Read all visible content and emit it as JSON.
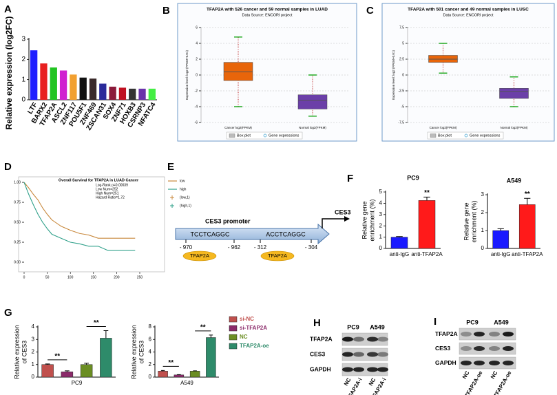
{
  "panel_labels": [
    "A",
    "B",
    "C",
    "D",
    "E",
    "F",
    "G",
    "H",
    "I"
  ],
  "chart_data": [
    {
      "type": "bar",
      "ylabel": "Relative expression (log2FC)",
      "categories": [
        "LTF",
        "BARX2",
        "TFAP2A",
        "ASCL2",
        "ZNF117",
        "POU5F1",
        "ZNF469",
        "ZSCAN31",
        "SOX4",
        "ZNF71",
        "HOXB3",
        "CSRNP3",
        "NFATC4"
      ],
      "values": [
        2.45,
        1.8,
        1.6,
        1.45,
        1.25,
        1.1,
        1.05,
        0.8,
        0.65,
        0.6,
        0.55,
        0.55,
        0.55
      ],
      "colors": [
        "#1f1fff",
        "#e82020",
        "#22c422",
        "#d020d0",
        "#f2a030",
        "#111111",
        "#3a2a2a",
        "#2a2a9a",
        "#8b1a3a",
        "#c01020",
        "#333333",
        "#6a33aa",
        "#44ee44"
      ],
      "ylim": [
        0,
        3
      ],
      "yticks": [
        0,
        1,
        2,
        3
      ]
    },
    {
      "type": "box",
      "title": "TFAP2A with 526 cancer and 59 normal samples in LUAD",
      "subtitle": "Data Source: ENCORI project",
      "ylabel": "Expression level: log2 (FPKM+0.01)",
      "categories": [
        "Cancer log2(FPKM)",
        "Normal log2(FPKM)"
      ],
      "boxes": [
        {
          "min": -4,
          "q1": -0.7,
          "median": 0.4,
          "q3": 1.6,
          "max": 4.8
        },
        {
          "min": -5.2,
          "q1": -4.3,
          "median": -3.2,
          "q3": -2.5,
          "max": 0
        }
      ],
      "colors": [
        "#e8650a",
        "#6b3fa8"
      ],
      "ylim": [
        -6,
        6
      ],
      "yticks": [
        -6,
        -4,
        -2,
        0,
        2,
        4,
        6
      ],
      "grid": true,
      "legend": [
        "Box plot",
        "Gene expressions"
      ]
    },
    {
      "type": "box",
      "title": "TFAP2A with 501 cancer and 49 normal samples in LUSC",
      "subtitle": "Data Source: ENCORI project",
      "ylabel": "Expression level: log2 (FPKM+0.01)",
      "categories": [
        "Cancer log2(FPKM)",
        "Normal log2(FPKM)"
      ],
      "boxes": [
        {
          "min": 0.3,
          "q1": 2.0,
          "median": 2.5,
          "q3": 3.1,
          "max": 5.0
        },
        {
          "min": -5,
          "q1": -3.7,
          "median": -2.6,
          "q3": -2.1,
          "max": -0.3
        }
      ],
      "colors": [
        "#e8650a",
        "#6b3fa8"
      ],
      "ylim": [
        -7.5,
        7.5
      ],
      "yticks": [
        -7.5,
        -5,
        -2.5,
        0,
        2.5,
        5,
        7.5
      ],
      "grid": true,
      "legend": [
        "Box plot",
        "Gene expressions"
      ]
    },
    {
      "type": "line",
      "title": "Overall Survival for TFAP2A in LUAD Cancer",
      "annotations": [
        "Log-Rank p=0.00039",
        "Low Num=252",
        "High Num=251",
        "Hazard Ratio=1.72"
      ],
      "x": [
        0,
        10,
        20,
        30,
        40,
        50,
        60,
        80,
        100,
        120,
        140,
        160,
        180,
        200,
        240
      ],
      "series": [
        {
          "name": "low",
          "color": "#c8883c",
          "values": [
            1,
            0.93,
            0.85,
            0.78,
            0.68,
            0.6,
            0.53,
            0.45,
            0.4,
            0.36,
            0.34,
            0.3,
            0.3,
            0.3,
            0.3
          ]
        },
        {
          "name": "high",
          "color": "#2fa08a",
          "values": [
            1,
            0.85,
            0.72,
            0.6,
            0.5,
            0.42,
            0.35,
            0.3,
            0.25,
            0.23,
            0.2,
            0.2,
            0.15,
            0.15,
            0.15
          ]
        }
      ],
      "censor_labels": [
        "(low,1)",
        "(high,1)"
      ],
      "xlim": [
        0,
        250
      ],
      "xticks": [
        0,
        50,
        100,
        150,
        200,
        250
      ],
      "ylim": [
        0,
        1
      ],
      "yticks": [
        {
          "value": 0,
          "label": "0.00"
        },
        {
          "value": 0.25,
          "label": "0.25"
        },
        {
          "value": 0.5,
          "label": "0.50"
        },
        {
          "value": 0.75,
          "label": "0.75"
        },
        {
          "value": 1,
          "label": "1.00"
        }
      ]
    },
    {
      "type": "bar",
      "title": "PC9",
      "ylabel": [
        "Relative gene",
        "enrichment (%)"
      ],
      "categories": [
        "anti-IgG",
        "anti-TFAP2A"
      ],
      "values": [
        1.0,
        4.25
      ],
      "errors": [
        0.05,
        0.3
      ],
      "colors": [
        "#1a1aff",
        "#ff1a1a"
      ],
      "annotations": [
        "**"
      ],
      "ylim": [
        0,
        5
      ],
      "yticks": [
        0,
        1,
        2,
        3,
        4,
        5
      ]
    },
    {
      "type": "bar",
      "title": "A549",
      "ylabel": [
        "Relative gene",
        "enrichment (%)"
      ],
      "categories": [
        "anti-IgG",
        "anti-TFAP2A"
      ],
      "values": [
        1.0,
        2.45
      ],
      "errors": [
        0.1,
        0.35
      ],
      "colors": [
        "#1a1aff",
        "#ff1a1a"
      ],
      "annotations": [
        "**"
      ],
      "ylim": [
        0,
        3
      ],
      "yticks": [
        0,
        1,
        2,
        3
      ]
    },
    {
      "type": "bar",
      "ylabel": [
        "Relative expression",
        "of CES3"
      ],
      "xlabel": "PC9",
      "legend": [
        "si-NC",
        "si-TFAP2A",
        "NC",
        "TFAP2A-oe"
      ],
      "values": [
        1.0,
        0.42,
        1.0,
        3.1
      ],
      "errors": [
        0.05,
        0.08,
        0.1,
        0.6
      ],
      "colors": [
        "#c0504d",
        "#8b2a6a",
        "#6b8e23",
        "#2e8b6a"
      ],
      "annotations": [
        "**",
        "**"
      ],
      "ylim": [
        0,
        4
      ],
      "yticks": [
        0,
        1,
        2,
        3,
        4
      ]
    },
    {
      "type": "bar",
      "ylabel": [
        "Relative expression",
        "of CES3"
      ],
      "xlabel": "A549",
      "values": [
        0.95,
        0.35,
        0.95,
        6.3
      ],
      "errors": [
        0.1,
        0.05,
        0.05,
        0.4
      ],
      "colors": [
        "#c0504d",
        "#8b2a6a",
        "#6b8e23",
        "#2e8b6a"
      ],
      "annotations": [
        "**",
        "**"
      ],
      "ylim": [
        0,
        8
      ],
      "yticks": [
        0,
        2,
        4,
        6,
        8
      ]
    }
  ],
  "promoter": {
    "title": "CES3 promoter",
    "gene": "CES3",
    "sites": [
      {
        "sequence": "TCCTCAGGC",
        "start": "- 970",
        "end": "- 962",
        "factor": "TFAP2A"
      },
      {
        "sequence": "ACCTCAGGC",
        "start": "- 312",
        "end": "- 304",
        "factor": "TFAP2A"
      }
    ]
  },
  "blots": [
    {
      "cell_lines": [
        "PC9",
        "A549"
      ],
      "proteins": [
        "TFAP2A",
        "CES3",
        "GAPDH"
      ],
      "lanes": [
        "NC",
        "TFAP2A-i",
        "NC",
        "TFAP2A-i"
      ]
    },
    {
      "cell_lines": [
        "PC9",
        "A549"
      ],
      "proteins": [
        "TFAP2A",
        "CES3",
        "GAPDH"
      ],
      "lanes": [
        "NC",
        "TFAP2A-oe",
        "NC",
        "TFAP2A-oe"
      ]
    }
  ]
}
